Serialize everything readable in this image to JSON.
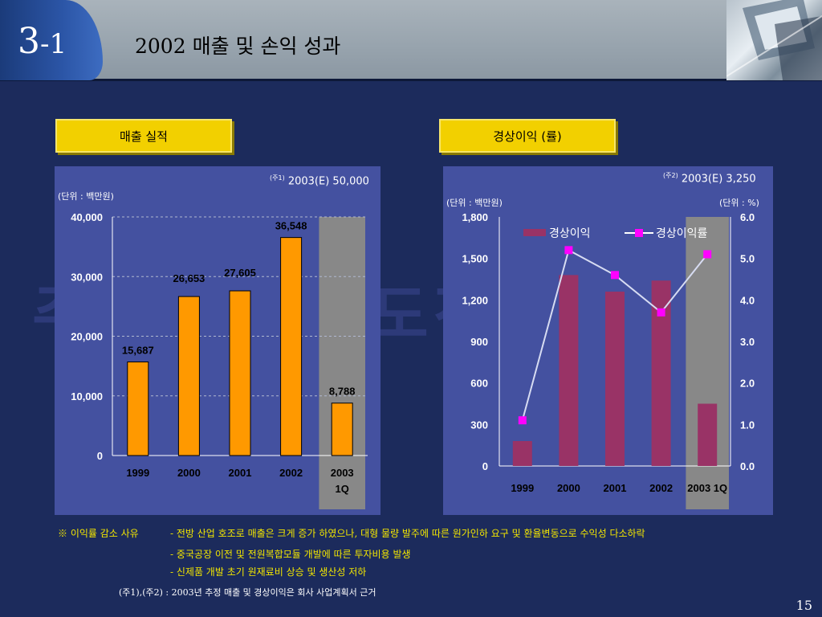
{
  "header": {
    "slide_number": "3",
    "slide_number_sub": "-1",
    "title": "2002 매출 및 손익 성과"
  },
  "watermark": "주식회사 선도전자",
  "left": {
    "label": "매출 실적",
    "unit": "(단위 : 백만원)",
    "annotation_mark": "(주1)",
    "annotation_text": "2003(E) 50,000"
  },
  "right": {
    "label": "경상이익 (률)",
    "unit_left": "(단위 : 백만원)",
    "unit_right": "(단위 : %)",
    "annotation_mark": "(주2)",
    "annotation_text": "2003(E) 3,250"
  },
  "chart_data": [
    {
      "type": "bar",
      "categories": [
        "1999",
        "2000",
        "2001",
        "2002",
        "2003 1Q"
      ],
      "category_labels": [
        [
          "1999"
        ],
        [
          "2000"
        ],
        [
          "2001"
        ],
        [
          "2002"
        ],
        [
          "2003",
          "1Q"
        ]
      ],
      "values": [
        15687,
        26653,
        27605,
        36548,
        8788
      ],
      "data_labels": [
        "15,687",
        "26,653",
        "27,605",
        "36,548",
        "8,788"
      ],
      "yticks": [
        "0",
        "10,000",
        "20,000",
        "30,000",
        "40,000"
      ],
      "ylim": [
        0,
        40000
      ],
      "grid": true,
      "colors": {
        "bar": "#ff9900",
        "highlight": "#888888",
        "grid": "#b0b8d0"
      }
    },
    {
      "type": "bar+line",
      "categories": [
        "1999",
        "2000",
        "2001",
        "2002",
        "2003 1Q"
      ],
      "series": [
        {
          "name": "경상이익",
          "axis": "left",
          "values": [
            180,
            1380,
            1260,
            1340,
            450
          ]
        },
        {
          "name": "경상이익률",
          "axis": "right",
          "values": [
            1.1,
            5.2,
            4.6,
            3.7,
            5.1
          ]
        }
      ],
      "yticks_left": [
        "0",
        "300",
        "600",
        "900",
        "1,200",
        "1,500",
        "1,800"
      ],
      "yticks_right": [
        "0.0",
        "1.0",
        "2.0",
        "3.0",
        "4.0",
        "5.0",
        "6.0"
      ],
      "ylim_left": [
        0,
        1800
      ],
      "ylim_right": [
        0,
        6
      ],
      "legend": "top",
      "colors": {
        "bar": "#993366",
        "line": "#d7dcf2",
        "marker": "#ff00ff",
        "highlight": "#888888"
      }
    }
  ],
  "notes": {
    "reason_title": "※ 이익률 감소 사유",
    "items": [
      "- 전방 산업 호조로 매출은 크게 증가 하였으나, 대형 물량 발주에 따른 원가인하 요구 및 환율변동으로 수익성 다소하락",
      "- 중국공장 이전 및 전원복합모듈 개발에 따른 투자비용 발생",
      "- 신제품 개발 초기 원재료비 상승 및 생산성 저하"
    ],
    "footnote": "(주1),(주2) :  2003년 추정 매출 및 경상이익은 회사 사업계획서 근거"
  },
  "page_number": "15"
}
